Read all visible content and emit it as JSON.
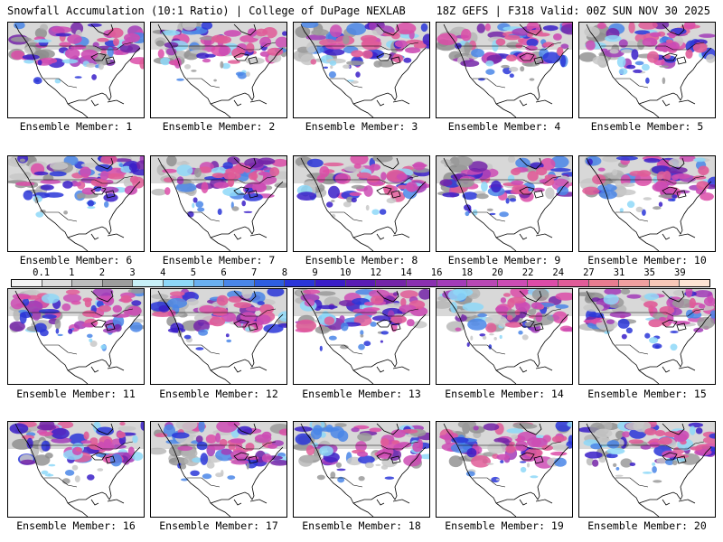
{
  "header": {
    "left_title": "Snowfall Accumulation (10:1 Ratio) | College of DuPage NEXLAB",
    "right_title": "18Z GEFS | F318 Valid: 00Z SUN NOV 30 2025"
  },
  "legend": {
    "ticks": [
      "0.1",
      "1",
      "2",
      "3",
      "4",
      "5",
      "6",
      "7",
      "8",
      "9",
      "10",
      "12",
      "14",
      "16",
      "18",
      "20",
      "22",
      "24",
      "27",
      "31",
      "35",
      "39"
    ],
    "colors": [
      "#f4f4f4",
      "#dcdcdc",
      "#bdbdbd",
      "#9d9d9d",
      "#c8f0f8",
      "#8ed8f8",
      "#6ab0f0",
      "#4a86e8",
      "#2e5ee0",
      "#2a36d8",
      "#3a1ec8",
      "#5a1cb4",
      "#7424a8",
      "#8a30b0",
      "#a23cb8",
      "#b848b4",
      "#cc4cb4",
      "#dc4ca8",
      "#e05c98",
      "#e87c90",
      "#f0a0a0",
      "#f8c8b8",
      "#fde4d4"
    ]
  },
  "panels": [
    {
      "label": "Ensemble Member: 1"
    },
    {
      "label": "Ensemble Member: 2"
    },
    {
      "label": "Ensemble Member: 3"
    },
    {
      "label": "Ensemble Member: 4"
    },
    {
      "label": "Ensemble Member: 5"
    },
    {
      "label": "Ensemble Member: 6"
    },
    {
      "label": "Ensemble Member: 7"
    },
    {
      "label": "Ensemble Member: 8"
    },
    {
      "label": "Ensemble Member: 9"
    },
    {
      "label": "Ensemble Member: 10"
    },
    {
      "label": "Ensemble Member: 11"
    },
    {
      "label": "Ensemble Member: 12"
    },
    {
      "label": "Ensemble Member: 13"
    },
    {
      "label": "Ensemble Member: 14"
    },
    {
      "label": "Ensemble Member: 15"
    },
    {
      "label": "Ensemble Member: 16"
    },
    {
      "label": "Ensemble Member: 17"
    },
    {
      "label": "Ensemble Member: 18"
    },
    {
      "label": "Ensemble Member: 19"
    },
    {
      "label": "Ensemble Member: 20"
    }
  ]
}
